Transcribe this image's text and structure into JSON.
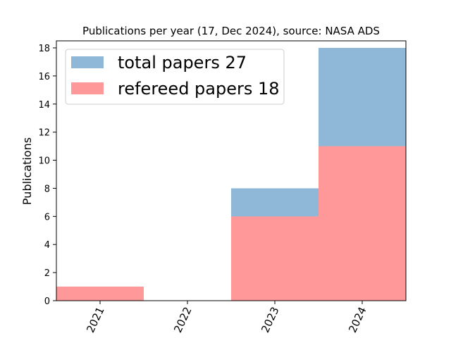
{
  "chart_data": {
    "type": "bar",
    "title": "Publications per year (17, Dec 2024), source: NASA ADS",
    "xlabel": "",
    "ylabel": "Publications",
    "categories": [
      "2021",
      "2022",
      "2023",
      "2024"
    ],
    "series": [
      {
        "name": "total papers 27",
        "values": [
          1,
          0,
          8,
          18
        ],
        "color": "#8fb8d8"
      },
      {
        "name": "refereed papers 18",
        "values": [
          1,
          0,
          6,
          11
        ],
        "color": "#ff9999"
      }
    ],
    "ylim": [
      0,
      18.5
    ],
    "yticks": [
      0,
      2,
      4,
      6,
      8,
      10,
      12,
      14,
      16,
      18
    ],
    "grid": false,
    "legend": "top-left",
    "xtick_rotation": -65
  }
}
